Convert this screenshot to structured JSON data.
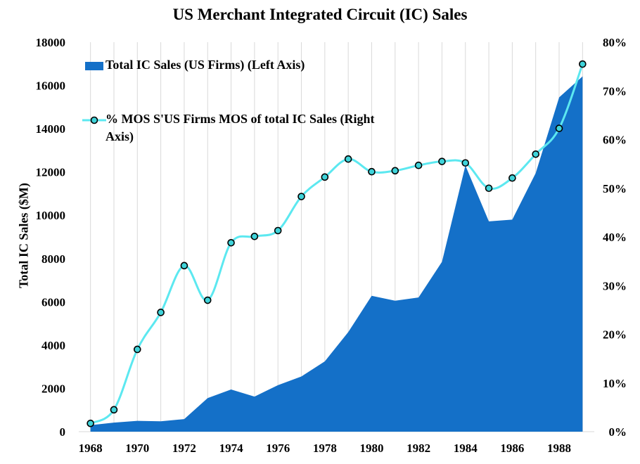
{
  "chart_data": {
    "type": "area+line",
    "title": "US Merchant Integrated Circuit (IC) Sales",
    "ylabel": "Total IC Sales ($M)",
    "xlabel": "",
    "x": [
      1968,
      1969,
      1970,
      1971,
      1972,
      1973,
      1974,
      1975,
      1976,
      1977,
      1978,
      1979,
      1980,
      1981,
      1982,
      1983,
      1984,
      1985,
      1986,
      1987,
      1988,
      1989
    ],
    "xticks": [
      "1968",
      "1970",
      "1972",
      "1974",
      "1976",
      "1978",
      "1980",
      "1982",
      "1984",
      "1986",
      "1988"
    ],
    "ylim": [
      0,
      18000
    ],
    "yticks": [
      "0",
      "2000",
      "4000",
      "6000",
      "8000",
      "10000",
      "12000",
      "14000",
      "16000",
      "18000"
    ],
    "y2lim": [
      0,
      0.8
    ],
    "y2ticks": [
      "0%",
      "10%",
      "20%",
      "30%",
      "40%",
      "50%",
      "60%",
      "70%",
      "80%"
    ],
    "grid": "vertical",
    "legend_position": "top-left",
    "series": [
      {
        "name": "Total IC Sales (US Firms) (Left Axis)",
        "type": "area",
        "axis": "left",
        "color": "#1470c8",
        "values": [
          300,
          420,
          500,
          480,
          580,
          1550,
          1950,
          1620,
          2150,
          2550,
          3250,
          4600,
          6280,
          6050,
          6200,
          7850,
          12300,
          9720,
          9800,
          11950,
          15450,
          16420
        ]
      },
      {
        "name": "% MOS S'US Firms MOS of total IC Sales (Right Axis)",
        "type": "line",
        "axis": "right",
        "color": "#5ce8f0",
        "values": [
          0.017,
          0.045,
          0.169,
          0.245,
          0.341,
          0.27,
          0.388,
          0.401,
          0.413,
          0.483,
          0.523,
          0.56,
          0.534,
          0.536,
          0.547,
          0.555,
          0.552,
          0.5,
          0.521,
          0.57,
          0.623,
          0.755
        ]
      }
    ]
  }
}
